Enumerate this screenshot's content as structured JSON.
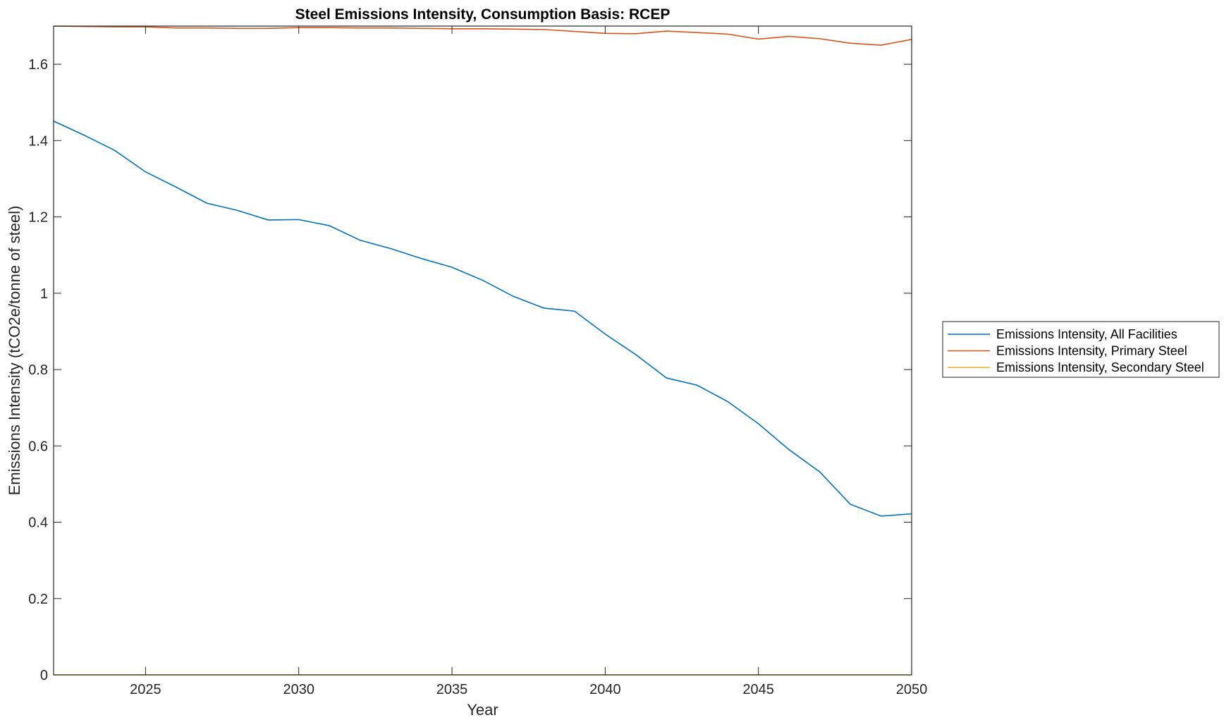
{
  "chart_data": {
    "type": "line",
    "title": "Steel Emissions Intensity, Consumption Basis: RCEP",
    "xlabel": "Year",
    "ylabel": "Emissions Intensity (tCO2e/tonne of steel)",
    "xlim": [
      2022,
      2050
    ],
    "ylim": [
      0,
      1.7
    ],
    "xticks": [
      2025,
      2030,
      2035,
      2040,
      2045,
      2050
    ],
    "yticks": [
      0,
      0.2,
      0.4,
      0.6,
      0.8,
      1,
      1.2,
      1.4,
      1.6
    ],
    "ytick_labels": [
      "0",
      "0.2",
      "0.4",
      "0.6",
      "0.8",
      "1",
      "1.2",
      "1.4",
      "1.6"
    ],
    "grid": false,
    "legend_position": "outside-right",
    "x": [
      2022,
      2023,
      2024,
      2025,
      2026,
      2027,
      2028,
      2029,
      2030,
      2031,
      2032,
      2033,
      2034,
      2035,
      2036,
      2037,
      2038,
      2039,
      2040,
      2041,
      2042,
      2043,
      2044,
      2045,
      2046,
      2047,
      2048,
      2049,
      2050
    ],
    "series": [
      {
        "name": "Emissions Intensity, All Facilities",
        "color": "#0072BD",
        "values": [
          1.451,
          1.414,
          1.374,
          1.318,
          1.278,
          1.236,
          1.217,
          1.192,
          1.193,
          1.177,
          1.139,
          1.117,
          1.091,
          1.068,
          1.034,
          0.992,
          0.961,
          0.953,
          0.893,
          0.839,
          0.778,
          0.759,
          0.716,
          0.658,
          0.59,
          0.532,
          0.447,
          0.416,
          0.422
        ]
      },
      {
        "name": "Emissions Intensity, Primary Steel",
        "color": "#D95319",
        "values": [
          1.7,
          1.699,
          1.698,
          1.698,
          1.695,
          1.695,
          1.694,
          1.694,
          1.696,
          1.696,
          1.695,
          1.695,
          1.694,
          1.693,
          1.693,
          1.692,
          1.691,
          1.686,
          1.681,
          1.68,
          1.687,
          1.683,
          1.679,
          1.666,
          1.673,
          1.667,
          1.655,
          1.65,
          1.665
        ]
      },
      {
        "name": "Emissions Intensity, Secondary Steel",
        "color": "#EDB120",
        "values": [
          0,
          0,
          0,
          0,
          0,
          0,
          0,
          0,
          0,
          0,
          0,
          0,
          0,
          0,
          0,
          0,
          0,
          0,
          0,
          0,
          0,
          0,
          0,
          0,
          0,
          0,
          0,
          0,
          0
        ]
      }
    ]
  }
}
